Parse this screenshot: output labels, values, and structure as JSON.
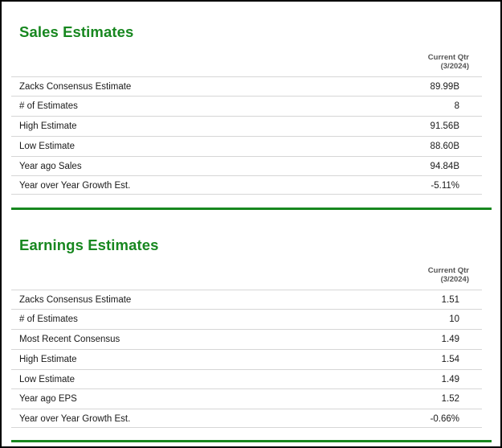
{
  "colors": {
    "title": "#17871f",
    "rule": "#17871f",
    "frame": "#000000"
  },
  "sales": {
    "title": "Sales Estimates",
    "col_head": {
      "line1": "Current Qtr",
      "line2": "(3/2024)"
    },
    "rows": [
      {
        "label": "Zacks Consensus Estimate",
        "value": "89.99B"
      },
      {
        "label": "# of Estimates",
        "value": "8"
      },
      {
        "label": "High Estimate",
        "value": "91.56B"
      },
      {
        "label": "Low Estimate",
        "value": "88.60B"
      },
      {
        "label": "Year ago Sales",
        "value": "94.84B"
      },
      {
        "label": "Year over Year Growth Est.",
        "value": "-5.11%"
      }
    ]
  },
  "earnings": {
    "title": "Earnings Estimates",
    "col_head": {
      "line1": "Current Qtr",
      "line2": "(3/2024)"
    },
    "rows": [
      {
        "label": "Zacks Consensus Estimate",
        "value": "1.51"
      },
      {
        "label": "# of Estimates",
        "value": "10"
      },
      {
        "label": "Most Recent Consensus",
        "value": "1.49"
      },
      {
        "label": "High Estimate",
        "value": "1.54"
      },
      {
        "label": "Low Estimate",
        "value": "1.49"
      },
      {
        "label": "Year ago EPS",
        "value": "1.52"
      },
      {
        "label": "Year over Year Growth Est.",
        "value": "-0.66%"
      }
    ]
  }
}
